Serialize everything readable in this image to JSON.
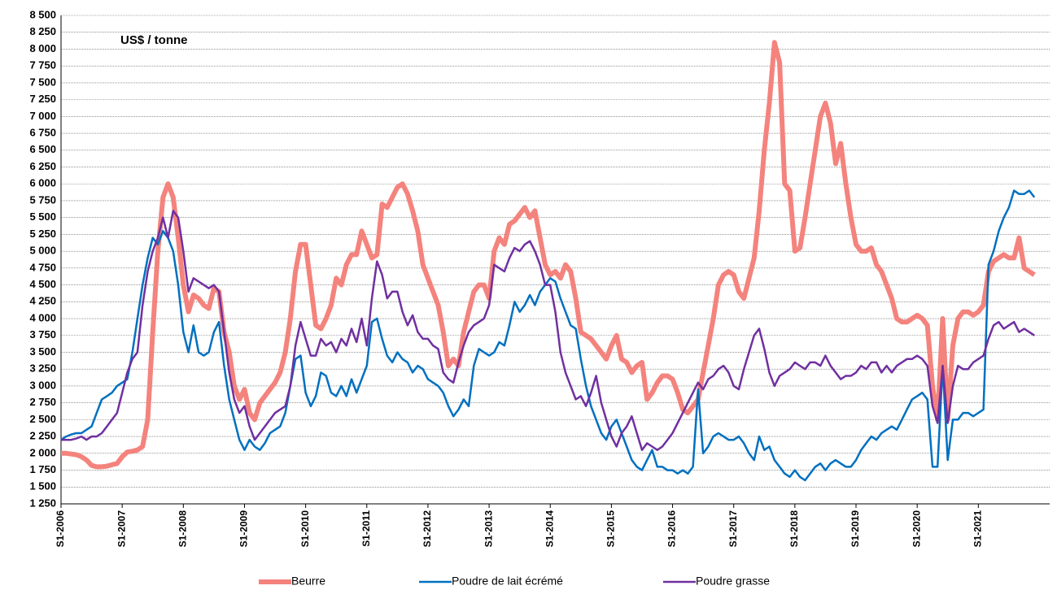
{
  "chart_data": {
    "type": "line",
    "title": "US$ / tonne",
    "categories": [
      "S1-2006",
      null,
      null,
      null,
      null,
      null,
      null,
      null,
      null,
      null,
      null,
      null,
      "S1-2007",
      null,
      null,
      null,
      null,
      null,
      null,
      null,
      null,
      null,
      null,
      null,
      "S1-2008",
      null,
      null,
      null,
      null,
      null,
      null,
      null,
      null,
      null,
      null,
      null,
      "S1-2009",
      null,
      null,
      null,
      null,
      null,
      null,
      null,
      null,
      null,
      null,
      null,
      "S1-2010",
      null,
      null,
      null,
      null,
      null,
      null,
      null,
      null,
      null,
      null,
      null,
      "S1-2011",
      null,
      null,
      null,
      null,
      null,
      null,
      null,
      null,
      null,
      null,
      null,
      "S1-2012",
      null,
      null,
      null,
      null,
      null,
      null,
      null,
      null,
      null,
      null,
      null,
      "S1-2013",
      null,
      null,
      null,
      null,
      null,
      null,
      null,
      null,
      null,
      null,
      null,
      "S1-2014",
      null,
      null,
      null,
      null,
      null,
      null,
      null,
      null,
      null,
      null,
      null,
      "S1-2015",
      null,
      null,
      null,
      null,
      null,
      null,
      null,
      null,
      null,
      null,
      null,
      "S1-2016",
      null,
      null,
      null,
      null,
      null,
      null,
      null,
      null,
      null,
      null,
      null,
      "S1-2017",
      null,
      null,
      null,
      null,
      null,
      null,
      null,
      null,
      null,
      null,
      null,
      "S1-2018",
      null,
      null,
      null,
      null,
      null,
      null,
      null,
      null,
      null,
      null,
      null,
      "S1-2019",
      null,
      null,
      null,
      null,
      null,
      null,
      null,
      null,
      null,
      null,
      null,
      "S1-2020",
      null,
      null,
      null,
      null,
      null,
      null,
      null,
      null,
      null,
      null,
      null,
      "S1-2021",
      null,
      null,
      null,
      null,
      null,
      null,
      null,
      null,
      null,
      null,
      null
    ],
    "series": [
      {
        "name": "Beurre",
        "color": "#f4837d",
        "values": [
          2000,
          2000,
          1990,
          1980,
          1950,
          1900,
          1820,
          1800,
          1800,
          1810,
          1830,
          1850,
          1950,
          2020,
          2030,
          2050,
          2100,
          2500,
          3800,
          5000,
          5800,
          6000,
          5800,
          5200,
          4500,
          4100,
          4350,
          4300,
          4200,
          4150,
          4450,
          4400,
          3800,
          3500,
          3000,
          2800,
          2950,
          2600,
          2500,
          2750,
          2850,
          2950,
          3050,
          3200,
          3500,
          4000,
          4700,
          5100,
          5100,
          4500,
          3900,
          3850,
          4000,
          4200,
          4600,
          4500,
          4800,
          4950,
          4950,
          5300,
          5100,
          4900,
          4950,
          5700,
          5650,
          5800,
          5950,
          6000,
          5850,
          5600,
          5300,
          4800,
          4600,
          4400,
          4200,
          3800,
          3300,
          3400,
          3300,
          3800,
          4100,
          4400,
          4500,
          4500,
          4300,
          5000,
          5200,
          5100,
          5400,
          5450,
          5550,
          5650,
          5500,
          5600,
          5200,
          4800,
          4650,
          4700,
          4600,
          4800,
          4700,
          4300,
          3800,
          3750,
          3700,
          3600,
          3500,
          3400,
          3600,
          3750,
          3400,
          3350,
          3200,
          3300,
          3350,
          2800,
          2900,
          3050,
          3150,
          3150,
          3100,
          2900,
          2650,
          2600,
          2700,
          2800,
          3200,
          3600,
          4000,
          4500,
          4650,
          4700,
          4650,
          4400,
          4300,
          4600,
          4900,
          5600,
          6500,
          7200,
          8100,
          7800,
          6000,
          5900,
          5000,
          5050,
          5500,
          6000,
          6500,
          7000,
          7200,
          6900,
          6300,
          6600,
          6000,
          5500,
          5100,
          5000,
          5000,
          5050,
          4800,
          4700,
          4500,
          4300,
          4000,
          3950,
          3950,
          4000,
          4050,
          4000,
          3900,
          3000,
          2500,
          4000,
          2500,
          3600,
          4000,
          4100,
          4100,
          4050,
          4100,
          4200,
          4700,
          4850,
          4900,
          4950,
          4900,
          4900,
          5200,
          4750,
          4700,
          4650
        ]
      },
      {
        "name": "Poudre de lait écrémé",
        "color": "#0070c0",
        "values": [
          2200,
          2250,
          2280,
          2300,
          2300,
          2350,
          2400,
          2600,
          2800,
          2850,
          2900,
          3000,
          3050,
          3100,
          3500,
          4000,
          4500,
          4900,
          5200,
          5100,
          5300,
          5200,
          5000,
          4500,
          3800,
          3500,
          3900,
          3500,
          3450,
          3500,
          3800,
          3950,
          3300,
          2800,
          2500,
          2200,
          2050,
          2200,
          2100,
          2050,
          2150,
          2300,
          2350,
          2400,
          2600,
          3000,
          3400,
          3450,
          2900,
          2700,
          2850,
          3200,
          3150,
          2900,
          2850,
          3000,
          2850,
          3100,
          2900,
          3100,
          3300,
          3950,
          4000,
          3700,
          3450,
          3350,
          3500,
          3400,
          3350,
          3200,
          3300,
          3250,
          3100,
          3050,
          3000,
          2900,
          2700,
          2550,
          2650,
          2800,
          2700,
          3300,
          3550,
          3500,
          3450,
          3500,
          3650,
          3600,
          3900,
          4250,
          4100,
          4200,
          4350,
          4200,
          4400,
          4500,
          4600,
          4550,
          4300,
          4100,
          3900,
          3850,
          3400,
          3000,
          2700,
          2500,
          2300,
          2200,
          2400,
          2500,
          2300,
          2100,
          1900,
          1800,
          1750,
          1900,
          2050,
          1800,
          1800,
          1750,
          1750,
          1700,
          1750,
          1700,
          1800,
          2950,
          2000,
          2100,
          2250,
          2300,
          2250,
          2200,
          2200,
          2250,
          2150,
          2000,
          1900,
          2250,
          2050,
          2100,
          1900,
          1800,
          1700,
          1650,
          1750,
          1650,
          1600,
          1700,
          1800,
          1850,
          1750,
          1850,
          1900,
          1850,
          1800,
          1800,
          1900,
          2050,
          2150,
          2250,
          2200,
          2300,
          2350,
          2400,
          2350,
          2500,
          2650,
          2800,
          2850,
          2900,
          2800,
          1800,
          1800,
          3300,
          1900,
          2500,
          2500,
          2600,
          2600,
          2550,
          2600,
          2650,
          4800,
          5000,
          5300,
          5500,
          5650,
          5900,
          5850,
          5850,
          5900,
          5800
        ]
      },
      {
        "name": "Poudre grasse",
        "color": "#7030a0",
        "values": [
          2200,
          2200,
          2200,
          2220,
          2250,
          2200,
          2250,
          2250,
          2300,
          2400,
          2500,
          2600,
          2900,
          3200,
          3400,
          3500,
          4200,
          4700,
          5000,
          5200,
          5500,
          5200,
          5600,
          5500,
          5000,
          4400,
          4600,
          4550,
          4500,
          4450,
          4500,
          4400,
          3800,
          3200,
          2800,
          2600,
          2700,
          2400,
          2200,
          2300,
          2400,
          2500,
          2600,
          2650,
          2700,
          3000,
          3600,
          3950,
          3700,
          3450,
          3450,
          3700,
          3600,
          3650,
          3500,
          3700,
          3600,
          3850,
          3650,
          4000,
          3600,
          4300,
          4850,
          4650,
          4300,
          4400,
          4400,
          4100,
          3900,
          4050,
          3800,
          3700,
          3700,
          3600,
          3550,
          3200,
          3100,
          3050,
          3350,
          3600,
          3800,
          3900,
          3950,
          4000,
          4200,
          4800,
          4750,
          4700,
          4900,
          5050,
          5000,
          5100,
          5150,
          5000,
          4800,
          4500,
          4500,
          4100,
          3500,
          3200,
          3000,
          2800,
          2850,
          2700,
          2900,
          3150,
          2750,
          2500,
          2250,
          2100,
          2300,
          2400,
          2550,
          2300,
          2050,
          2150,
          2100,
          2050,
          2100,
          2200,
          2300,
          2450,
          2600,
          2750,
          2900,
          3050,
          2950,
          3100,
          3150,
          3250,
          3300,
          3200,
          3000,
          2950,
          3250,
          3500,
          3750,
          3850,
          3550,
          3200,
          3000,
          3150,
          3200,
          3250,
          3350,
          3300,
          3250,
          3350,
          3350,
          3300,
          3450,
          3300,
          3200,
          3100,
          3150,
          3150,
          3200,
          3300,
          3250,
          3350,
          3350,
          3200,
          3300,
          3200,
          3300,
          3350,
          3400,
          3400,
          3450,
          3400,
          3300,
          2700,
          2450,
          3300,
          2450,
          3000,
          3300,
          3250,
          3250,
          3350,
          3400,
          3450,
          3700,
          3900,
          3950,
          3850,
          3900,
          3950,
          3800,
          3850,
          3800,
          3750
        ]
      }
    ],
    "ylim": [
      1250,
      8500
    ],
    "yticks": [
      {
        "value": 1250,
        "label": "1 250"
      },
      {
        "value": 1500,
        "label": "1 500"
      },
      {
        "value": 1750,
        "label": "1 750"
      },
      {
        "value": 2000,
        "label": "2 000"
      },
      {
        "value": 2250,
        "label": "2 250"
      },
      {
        "value": 2500,
        "label": "2 500"
      },
      {
        "value": 2750,
        "label": "2 750"
      },
      {
        "value": 3000,
        "label": "3 000"
      },
      {
        "value": 3250,
        "label": "3 250"
      },
      {
        "value": 3500,
        "label": "3 500"
      },
      {
        "value": 3750,
        "label": "3 750"
      },
      {
        "value": 4000,
        "label": "4 000"
      },
      {
        "value": 4250,
        "label": "4 250"
      },
      {
        "value": 4500,
        "label": "4 500"
      },
      {
        "value": 4750,
        "label": "4 750"
      },
      {
        "value": 5000,
        "label": "5 000"
      },
      {
        "value": 5250,
        "label": "5 250"
      },
      {
        "value": 5500,
        "label": "5 500"
      },
      {
        "value": 5750,
        "label": "5 750"
      },
      {
        "value": 6000,
        "label": "6 000"
      },
      {
        "value": 6250,
        "label": "6 250"
      },
      {
        "value": 6500,
        "label": "6 500"
      },
      {
        "value": 6750,
        "label": "6 750"
      },
      {
        "value": 7000,
        "label": "7 000"
      },
      {
        "value": 7250,
        "label": "7 250"
      },
      {
        "value": 7500,
        "label": "7 500"
      },
      {
        "value": 7750,
        "label": "7 750"
      },
      {
        "value": 8000,
        "label": "8 000"
      },
      {
        "value": 8250,
        "label": "8 250"
      },
      {
        "value": 8500,
        "label": "8 500"
      }
    ],
    "grid": true,
    "legend": "bottom"
  }
}
